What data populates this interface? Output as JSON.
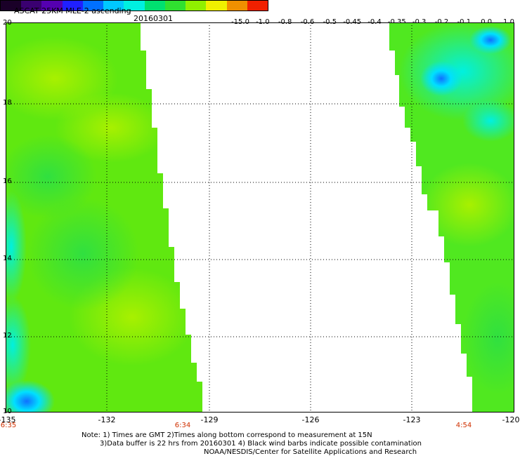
{
  "header": {
    "title": "ASCAT 25KM MLE-2 ascending",
    "date": "20160301"
  },
  "colorbar": {
    "labels": [
      "-15.0",
      "-1.0",
      "-0.8",
      "-0.6",
      "-0.5",
      "-0.45",
      "-0.4",
      "-0.35",
      "-0.3",
      "-0.2",
      "-0.1",
      "0.0",
      "1.0"
    ],
    "colors": [
      "#1a0028",
      "#3a0070",
      "#5500b0",
      "#2020ff",
      "#0070ff",
      "#00c8ff",
      "#00f0e0",
      "#00e070",
      "#30e030",
      "#90f000",
      "#f0f000",
      "#f09000",
      "#f02000"
    ]
  },
  "map": {
    "lat_labels": [
      "20",
      "18",
      "16",
      "14",
      "12",
      "10"
    ],
    "lon_labels": [
      "-135",
      "-132",
      "-129",
      "-126",
      "-123",
      "-120"
    ],
    "time_labels": [
      "6:35",
      "6:34",
      "4:54"
    ]
  },
  "notes": {
    "line1": "Note: 1) Times are GMT 2)Times along bottom correspond to measurement at 15N",
    "line2": "3)Data buffer is 22 hrs from 20160301 4) Black wind barbs indicate possible contamination",
    "line3": "NOAA/NESDIS/Center for Satellite Applications and Research"
  }
}
